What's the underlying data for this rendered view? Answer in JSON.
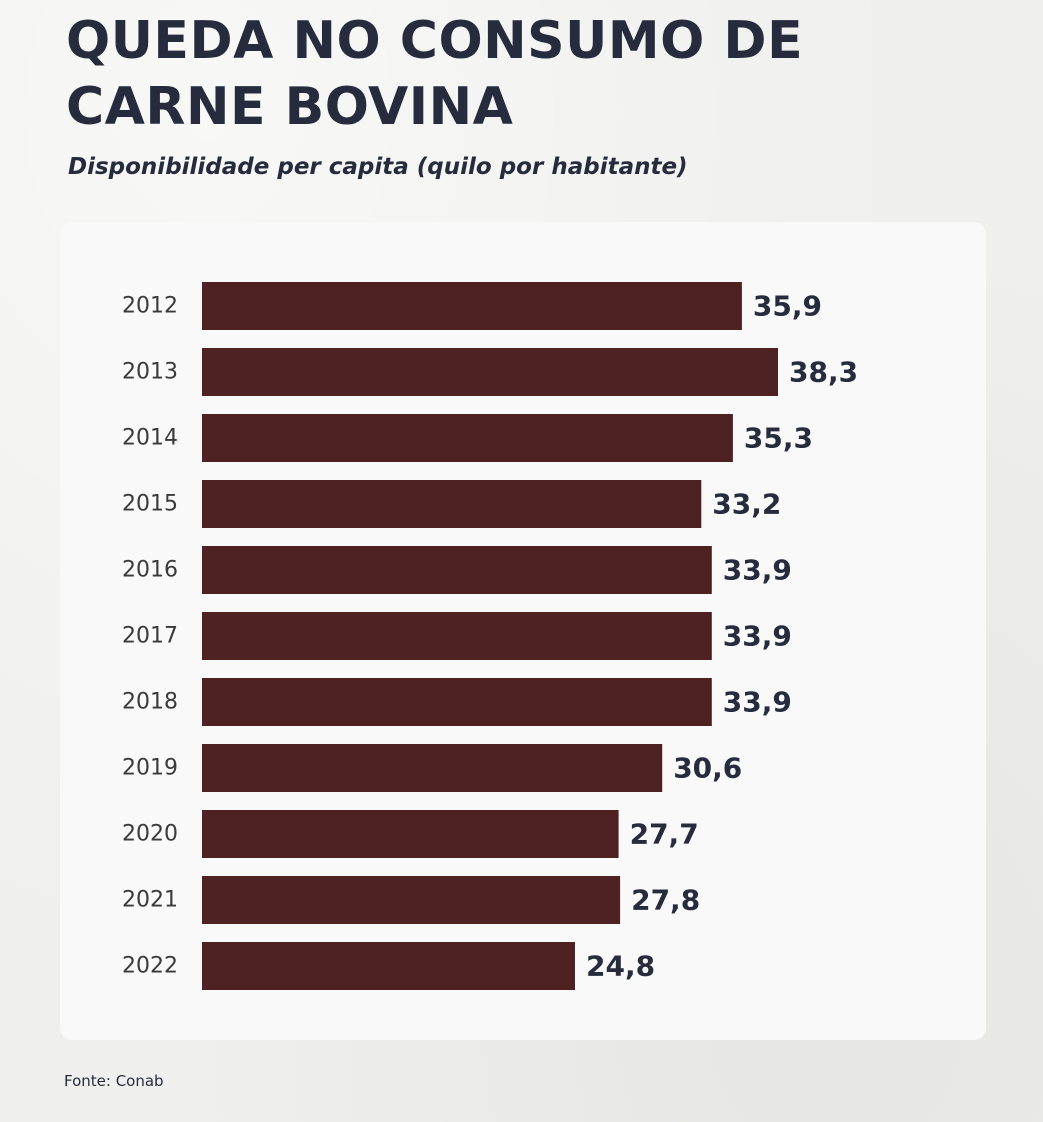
{
  "header": {
    "title_line1": "QUEDA NO CONSUMO DE",
    "title_line2": "CARNE BOVINA",
    "subtitle": "Disponibilidade per capita (quilo por habitante)"
  },
  "footer": {
    "source": "Fonte: Conab"
  },
  "colors": {
    "bar": "#4e2123",
    "text": "#262c3e",
    "category_label": "#3a3a3a",
    "card": "#f9f9f9"
  },
  "chart_data": {
    "type": "bar",
    "orientation": "horizontal",
    "title": "QUEDA NO CONSUMO DE CARNE BOVINA",
    "subtitle": "Disponibilidade per capita (quilo por habitante)",
    "categories": [
      "2012",
      "2013",
      "2014",
      "2015",
      "2016",
      "2017",
      "2018",
      "2019",
      "2020",
      "2021",
      "2022"
    ],
    "values": [
      35.9,
      38.3,
      35.3,
      33.2,
      33.9,
      33.9,
      33.9,
      30.6,
      27.7,
      27.8,
      24.8
    ],
    "value_labels": [
      "35,9",
      "38,3",
      "35,3",
      "33,2",
      "33,9",
      "33,9",
      "33,9",
      "30,6",
      "27,7",
      "27,8",
      "24,8"
    ],
    "xlim": [
      0,
      38.3
    ],
    "grid": false,
    "legend": "none"
  }
}
